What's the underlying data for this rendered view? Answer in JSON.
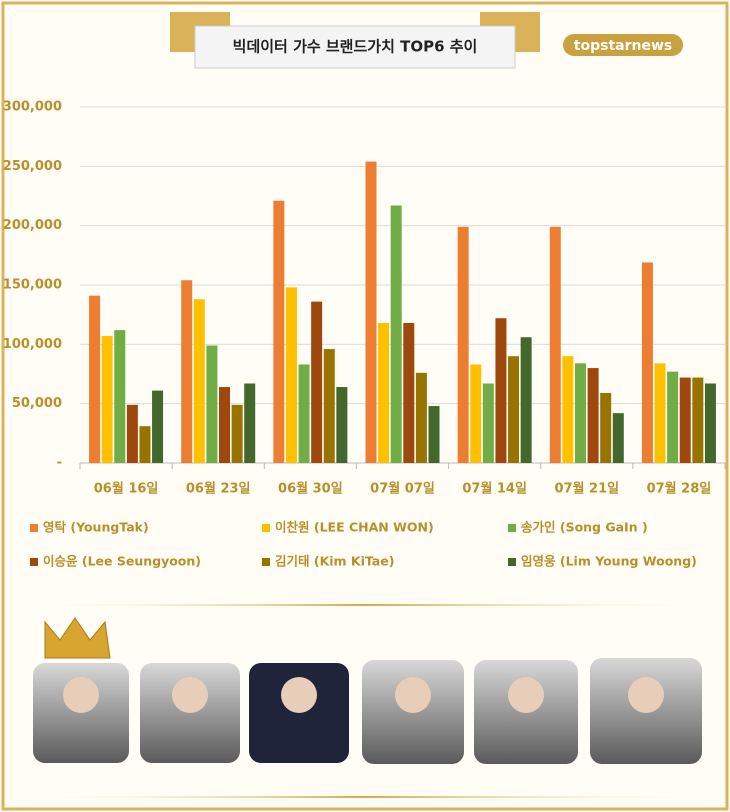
{
  "chart_data": {
    "type": "bar",
    "title": "빅데이터 가수 브랜드가치 TOP6 추이",
    "logo": "topstarnews",
    "categories": [
      "06월 16일",
      "06월 23일",
      "06월 30일",
      "07월 07일",
      "07월 14일",
      "07월 21일",
      "07월 28일"
    ],
    "series": [
      {
        "name": "영탁 (YoungTak)",
        "color": "#ed7d31",
        "values": [
          141000,
          154000,
          221000,
          254000,
          199000,
          199000,
          169000
        ]
      },
      {
        "name": "이찬원 (LEE CHAN WON)",
        "color": "#ffc000",
        "values": [
          107000,
          138000,
          148000,
          118000,
          83000,
          90000,
          84000
        ]
      },
      {
        "name": "송가인 (Song GaIn )",
        "color": "#70ad47",
        "values": [
          112000,
          99000,
          83000,
          217000,
          67000,
          84000,
          77000
        ]
      },
      {
        "name": "이승윤 (Lee Seungyoon)",
        "color": "#9e480e",
        "values": [
          49000,
          64000,
          136000,
          118000,
          122000,
          80000,
          72000
        ]
      },
      {
        "name": "김기태 (Kim KiTae)",
        "color": "#997300",
        "values": [
          31000,
          49000,
          96000,
          76000,
          90000,
          59000,
          72000
        ]
      },
      {
        "name": "임영웅 (Lim Young Woong)",
        "color": "#43682b",
        "values": [
          61000,
          67000,
          64000,
          48000,
          106000,
          42000,
          67000
        ]
      }
    ],
    "ylim": [
      0,
      300000
    ],
    "yticks": [
      {
        "value": 0,
        "label": "-"
      },
      {
        "value": 50000,
        "label": "50,000"
      },
      {
        "value": 100000,
        "label": "100,000"
      },
      {
        "value": 150000,
        "label": "150,000"
      },
      {
        "value": 200000,
        "label": "200,000"
      },
      {
        "value": 250000,
        "label": "250,000"
      },
      {
        "value": 300000,
        "label": "300,000"
      }
    ],
    "grid": true
  }
}
